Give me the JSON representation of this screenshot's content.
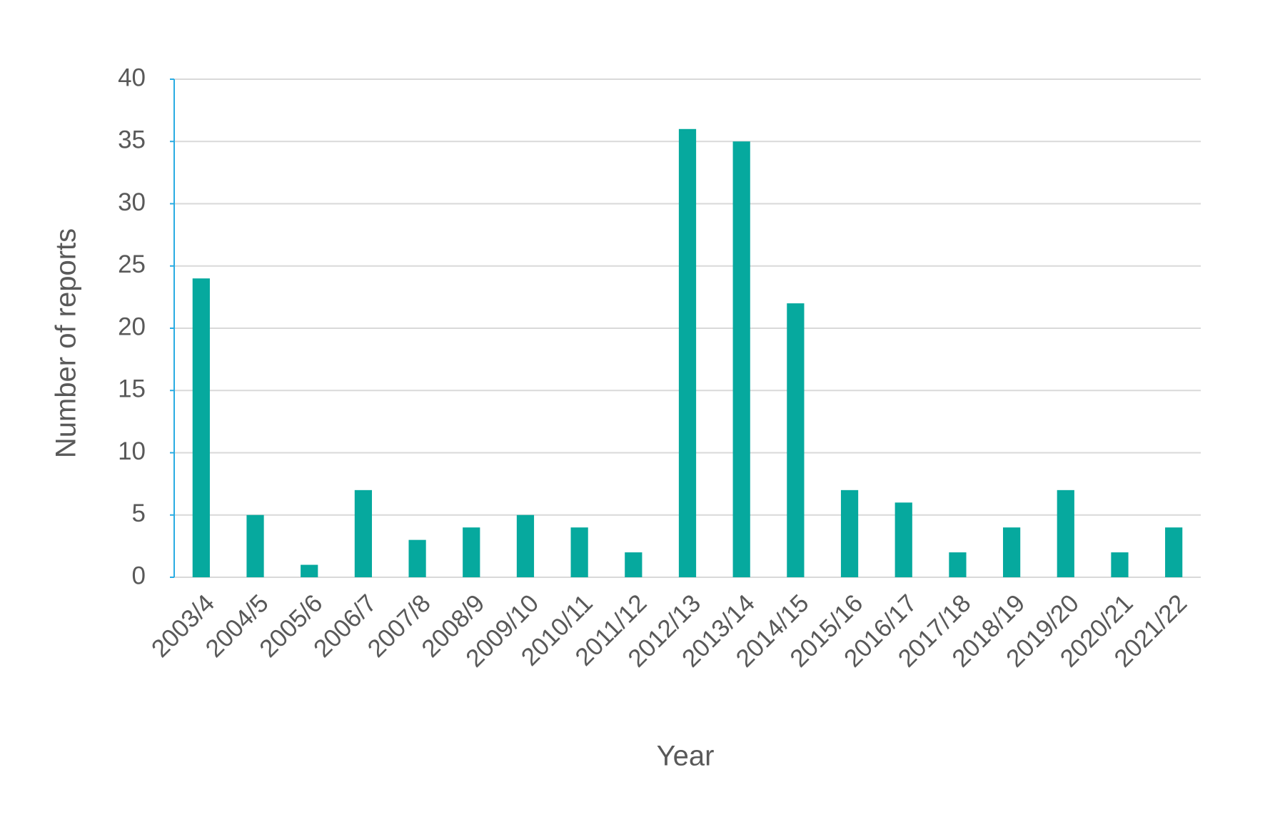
{
  "chart_data": {
    "type": "bar",
    "xlabel": "Year",
    "ylabel": "Number of reports",
    "categories": [
      "2003/4",
      "2004/5",
      "2005/6",
      "2006/7",
      "2007/8",
      "2008/9",
      "2009/10",
      "2010/11",
      "2011/12",
      "2012/13",
      "2013/14",
      "2014/15",
      "2015/16",
      "2016/17",
      "2017/18",
      "2018/19",
      "2019/20",
      "2020/21",
      "2021/22"
    ],
    "values": [
      24,
      5,
      1,
      7,
      3,
      4,
      5,
      4,
      2,
      36,
      35,
      22,
      7,
      6,
      2,
      4,
      7,
      2,
      4
    ],
    "color": "#06a99e",
    "ylim": [
      0,
      40
    ],
    "yticks": [
      0,
      5,
      10,
      15,
      20,
      25,
      30,
      35,
      40
    ],
    "grid": true
  }
}
